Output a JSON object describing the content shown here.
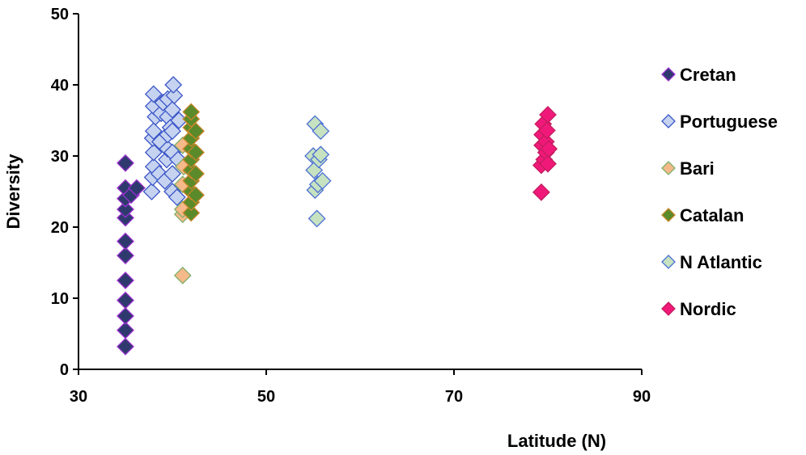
{
  "chart_data": {
    "type": "scatter",
    "xlabel": "Latitude (N)",
    "ylabel": "Diversity",
    "xlim": [
      30,
      90
    ],
    "ylim": [
      0,
      50
    ],
    "xticks": [
      30,
      50,
      70,
      90
    ],
    "yticks": [
      0,
      10,
      20,
      30,
      40,
      50
    ],
    "grid": false,
    "legend_position": "right",
    "series": [
      {
        "name": "Cretan",
        "fill": "#2e3a6e",
        "stroke": "#9b30d0",
        "points": [
          [
            35,
            3.2
          ],
          [
            35,
            5.5
          ],
          [
            35,
            7.5
          ],
          [
            35,
            9.7
          ],
          [
            35,
            12.5
          ],
          [
            35,
            16
          ],
          [
            35,
            18
          ],
          [
            35,
            21.3
          ],
          [
            35,
            22.5
          ],
          [
            35,
            24
          ],
          [
            35,
            25.5
          ],
          [
            35,
            29
          ],
          [
            35.6,
            24.5
          ],
          [
            36.2,
            25.5
          ]
        ]
      },
      {
        "name": "Portuguese",
        "fill": "#c6d3f0",
        "stroke": "#3a55c8",
        "points": [
          [
            37.8,
            25
          ],
          [
            37.9,
            27
          ],
          [
            38,
            28.5
          ],
          [
            38,
            30.5
          ],
          [
            37.9,
            32.5
          ],
          [
            38,
            33.5
          ],
          [
            38.2,
            35.5
          ],
          [
            38,
            37
          ],
          [
            38,
            38.7
          ],
          [
            38.6,
            27.5
          ],
          [
            38.7,
            32
          ],
          [
            38.8,
            36
          ],
          [
            39,
            37.5
          ],
          [
            39.2,
            26.5
          ],
          [
            39.4,
            29.5
          ],
          [
            39.5,
            31
          ],
          [
            39.5,
            33
          ],
          [
            39.5,
            35.5
          ],
          [
            39.5,
            38
          ],
          [
            39.8,
            34
          ],
          [
            40,
            25
          ],
          [
            40,
            27.5
          ],
          [
            40,
            30.5
          ],
          [
            40,
            33.5
          ],
          [
            40,
            36.5
          ],
          [
            40.2,
            38.5
          ],
          [
            40.1,
            40
          ],
          [
            40.5,
            24.2
          ],
          [
            40.6,
            29.5
          ],
          [
            40.7,
            35
          ]
        ]
      },
      {
        "name": "Bari",
        "fill": "#f5b98a",
        "stroke": "#7fb069",
        "points": [
          [
            41.1,
            13.2
          ],
          [
            41.1,
            21.8
          ],
          [
            41.1,
            22.5
          ],
          [
            41.1,
            26
          ],
          [
            41.2,
            28.5
          ],
          [
            41.1,
            31.5
          ]
        ]
      },
      {
        "name": "Catalan",
        "fill": "#5a8a2a",
        "stroke": "#c8862a",
        "points": [
          [
            42,
            22
          ],
          [
            42,
            23.5
          ],
          [
            42,
            25
          ],
          [
            42,
            26.5
          ],
          [
            42,
            28
          ],
          [
            42,
            29.5
          ],
          [
            42,
            31
          ],
          [
            42,
            32.5
          ],
          [
            42,
            34
          ],
          [
            42,
            35.2
          ],
          [
            42,
            36.2
          ],
          [
            42.5,
            24.5
          ],
          [
            42.5,
            27.5
          ],
          [
            42.5,
            30.5
          ],
          [
            42.5,
            33.5
          ]
        ]
      },
      {
        "name": "N Atlantic",
        "fill": "#c6e2c0",
        "stroke": "#4a6fd6",
        "points": [
          [
            55,
            30
          ],
          [
            55.1,
            28
          ],
          [
            55.2,
            34.5
          ],
          [
            55.2,
            25.2
          ],
          [
            55.4,
            21.2
          ],
          [
            55.5,
            26
          ],
          [
            55.6,
            29.5
          ],
          [
            55.8,
            33.5
          ],
          [
            55.8,
            30.2
          ],
          [
            56,
            26.5
          ]
        ]
      },
      {
        "name": "Nordic",
        "fill": "#f0197a",
        "stroke": "#c41c5e",
        "points": [
          [
            79.3,
            24.9
          ],
          [
            79.3,
            28.7
          ],
          [
            79.4,
            31.5
          ],
          [
            79.4,
            33
          ],
          [
            79.5,
            34.5
          ],
          [
            79.6,
            29.5
          ],
          [
            79.8,
            30.5
          ],
          [
            79.8,
            32
          ],
          [
            79.9,
            33.6
          ],
          [
            80,
            35.8
          ],
          [
            80,
            28.9
          ],
          [
            80.1,
            31
          ]
        ]
      }
    ]
  }
}
